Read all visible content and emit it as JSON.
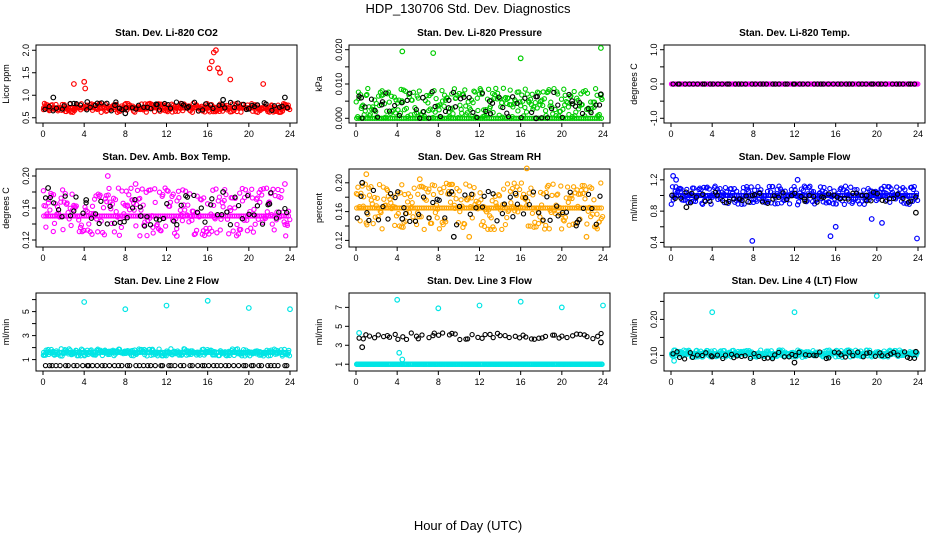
{
  "title": "HDP_130706  Std. Dev. Diagnostics",
  "xlabel": "Hour of Day (UTC)",
  "chart_data": [
    {
      "type": "scatter",
      "title": "Stan. Dev. Li-820 CO2",
      "ylabel": "Licor ppm",
      "xlim": [
        0,
        24
      ],
      "ylim": [
        0.45,
        2.05
      ],
      "xticks": [
        0,
        4,
        8,
        12,
        16,
        20,
        24
      ],
      "yticks": [
        0.5,
        1.0,
        1.5,
        2.0
      ],
      "ytick_labels": [
        "0.5",
        "1.0",
        "1.5",
        "2.0"
      ],
      "series": [
        {
          "color": "#ff0000",
          "band": [
            0.62,
            0.82
          ],
          "baseline": 0.72,
          "x": [
            3.0,
            4.0,
            4.1,
            16.2,
            16.4,
            16.6,
            16.8,
            17.0,
            17.2,
            18.2,
            21.4
          ],
          "y": [
            1.25,
            1.3,
            1.15,
            1.6,
            1.75,
            1.95,
            2.0,
            1.6,
            1.5,
            1.35,
            1.25
          ]
        },
        {
          "color": "#000000",
          "band": [
            0.65,
            0.85
          ],
          "baseline": 0.75,
          "x": [
            1.0,
            4.3,
            7.0,
            8.0,
            11.0,
            14.0,
            17.5,
            20.0,
            23.5
          ],
          "y": [
            0.95,
            0.85,
            0.78,
            0.6,
            0.8,
            0.72,
            0.9,
            0.7,
            0.95
          ]
        }
      ]
    },
    {
      "type": "scatter",
      "title": "Stan. Dev. Li-820 Pressure",
      "ylabel": "kPa",
      "xlim": [
        0,
        24
      ],
      "ylim": [
        -0.0005,
        0.0205
      ],
      "xticks": [
        0,
        4,
        8,
        12,
        16,
        20,
        24
      ],
      "yticks": [
        0.0,
        0.005,
        0.01,
        0.015,
        0.02
      ],
      "ytick_labels": [
        "0.000",
        "",
        "0.010",
        "",
        "0.020"
      ],
      "series": [
        {
          "color": "#00cc00",
          "band": [
            0.0,
            0.009
          ],
          "baseline": 0.0,
          "x": [
            4.5,
            7.5,
            16.0,
            23.8
          ],
          "y": [
            0.0195,
            0.019,
            0.0175,
            0.0205
          ]
        },
        {
          "color": "#000000",
          "band": [
            0.0,
            0.008
          ],
          "baseline": 0.0,
          "x": [
            0.5,
            2.5,
            6.5,
            9.0,
            13.0,
            17.5,
            21.0,
            23.8
          ],
          "y": [
            0.006,
            0.004,
            0.006,
            0.003,
            0.005,
            0.0,
            0.005,
            0.007
          ]
        }
      ]
    },
    {
      "type": "scatter",
      "title": "Stan. Dev. Li-820 Temp.",
      "ylabel": "degrees C",
      "xlim": [
        0,
        24
      ],
      "ylim": [
        -1.05,
        1.05
      ],
      "xticks": [
        0,
        4,
        8,
        12,
        16,
        20,
        24
      ],
      "yticks": [
        -1.0,
        -0.5,
        0.0,
        0.5,
        1.0
      ],
      "ytick_labels": [
        "-1.0",
        "",
        "0.0",
        "",
        "1.0"
      ],
      "series": [
        {
          "color": "#ff00ff",
          "band": [
            0.0,
            0.0
          ],
          "baseline": 0.0,
          "x": [],
          "y": []
        },
        {
          "color": "#000000",
          "band": [
            0.0,
            0.0
          ],
          "baseline": 0.0,
          "x": [],
          "y": []
        }
      ]
    },
    {
      "type": "scatter",
      "title": "Stan. Dev. Amb. Box Temp.",
      "ylabel": "degrees C",
      "xlim": [
        0,
        24
      ],
      "ylim": [
        0.115,
        0.205
      ],
      "xticks": [
        0,
        4,
        8,
        12,
        16,
        20,
        24
      ],
      "yticks": [
        0.12,
        0.14,
        0.16,
        0.18,
        0.2
      ],
      "ytick_labels": [
        "0.12",
        "",
        "0.16",
        "",
        "0.20"
      ],
      "series": [
        {
          "color": "#ff00ff",
          "band": [
            0.125,
            0.185
          ],
          "baseline": 0.15,
          "x": [
            6.3,
            9.0,
            13.0,
            23.5
          ],
          "y": [
            0.2,
            0.19,
            0.125,
            0.19
          ]
        },
        {
          "color": "#000000",
          "band": [
            0.135,
            0.18
          ],
          "baseline": 0.155,
          "x": [
            0.5,
            4.2,
            9.5,
            17.5,
            22.0
          ],
          "y": [
            0.185,
            0.17,
            0.15,
            0.18,
            0.165
          ]
        }
      ]
    },
    {
      "type": "scatter",
      "title": "Stan. Dev. Gas Stream RH",
      "ylabel": "percent",
      "xlim": [
        0,
        24
      ],
      "ylim": [
        0.115,
        0.215
      ],
      "xticks": [
        0,
        4,
        8,
        12,
        16,
        20,
        24
      ],
      "yticks": [
        0.12,
        0.14,
        0.16,
        0.18,
        0.2
      ],
      "ytick_labels": [
        "0.12",
        "",
        "0.16",
        "",
        "0.20"
      ],
      "series": [
        {
          "color": "#ffa500",
          "band": [
            0.135,
            0.2
          ],
          "baseline": 0.165,
          "x": [
            1.0,
            6.2,
            11.0,
            16.6,
            22.4
          ],
          "y": [
            0.212,
            0.205,
            0.125,
            0.22,
            0.125
          ]
        },
        {
          "color": "#000000",
          "band": [
            0.14,
            0.19
          ],
          "baseline": 0.165,
          "x": [
            0.6,
            4.5,
            9.5,
            15.5,
            21.5
          ],
          "y": [
            0.2,
            0.15,
            0.125,
            0.185,
            0.145
          ]
        }
      ]
    },
    {
      "type": "scatter",
      "title": "Stan. Dev. Sample Flow",
      "ylabel": "ml/min",
      "xlim": [
        0,
        24
      ],
      "ylim": [
        0.38,
        1.3
      ],
      "xticks": [
        0,
        4,
        8,
        12,
        16,
        20,
        24
      ],
      "yticks": [
        0.4,
        0.6,
        0.8,
        1.0,
        1.2
      ],
      "ytick_labels": [
        "0.4",
        "",
        "0.8",
        "",
        "1.2"
      ],
      "series": [
        {
          "color": "#0000ff",
          "band": [
            0.88,
            1.12
          ],
          "baseline": 1.0,
          "x": [
            0.2,
            0.5,
            7.9,
            15.5,
            16.0,
            19.5,
            20.5,
            23.9,
            12.3
          ],
          "y": [
            1.25,
            1.2,
            0.42,
            0.48,
            0.6,
            0.7,
            0.65,
            0.45,
            1.2
          ]
        },
        {
          "color": "#000000",
          "band": [
            0.9,
            1.05
          ],
          "baseline": 0.97,
          "x": [
            1.5,
            7.5,
            13.0,
            19.0,
            23.8
          ],
          "y": [
            0.85,
            0.92,
            0.95,
            1.0,
            0.78
          ]
        }
      ]
    },
    {
      "type": "scatter",
      "title": "Stan. Dev. Line 2 Flow",
      "ylabel": "ml/min",
      "xlim": [
        0,
        24
      ],
      "ylim": [
        0.3,
        6.3
      ],
      "xticks": [
        0,
        4,
        8,
        12,
        16,
        20,
        24
      ],
      "yticks": [
        1,
        2,
        3,
        4,
        5,
        6
      ],
      "ytick_labels": [
        "1",
        "",
        "3",
        "",
        "5",
        ""
      ],
      "series": [
        {
          "color": "#00e5e5",
          "band": [
            1.3,
            1.9
          ],
          "baseline": 1.6,
          "x": [
            4.0,
            8.0,
            12.0,
            16.0,
            20.0,
            24.0
          ],
          "y": [
            5.8,
            5.2,
            5.5,
            5.9,
            5.3,
            5.2
          ]
        },
        {
          "color": "#000000",
          "band": [
            0.5,
            0.5
          ],
          "baseline": 0.5,
          "x": [],
          "y": []
        }
      ]
    },
    {
      "type": "scatter",
      "title": "Stan. Dev. Line 3 Flow",
      "ylabel": "ml/min",
      "xlim": [
        0,
        24
      ],
      "ylim": [
        0.6,
        8.2
      ],
      "xticks": [
        0,
        4,
        8,
        12,
        16,
        20,
        24
      ],
      "yticks": [
        1,
        3,
        5,
        7
      ],
      "ytick_labels": [
        "1",
        "3",
        "5",
        "7"
      ],
      "series": [
        {
          "color": "#00e5e5",
          "band": [
            1.0,
            1.0
          ],
          "baseline": 1.0,
          "x": [
            0.3,
            4.0,
            4.2,
            4.5,
            8.0,
            12.0,
            16.0,
            20.0,
            24.0
          ],
          "y": [
            4.3,
            7.8,
            2.2,
            1.5,
            6.9,
            7.2,
            7.6,
            7.0,
            7.2
          ]
        },
        {
          "color": "#000000",
          "band": [
            3.6,
            4.3
          ],
          "baseline": 3.9,
          "x": [
            0.6,
            23.8
          ],
          "y": [
            2.8,
            3.3
          ]
        }
      ]
    },
    {
      "type": "scatter",
      "title": "Stan. Dev. Line 4 (LT) Flow",
      "ylabel": "ml/min",
      "xlim": [
        0,
        24
      ],
      "ylim": [
        0.065,
        0.265
      ],
      "xticks": [
        0,
        4,
        8,
        12,
        16,
        20,
        24
      ],
      "yticks": [
        0.1,
        0.15,
        0.2,
        0.25
      ],
      "ytick_labels": [
        "0.10",
        "",
        "0.20",
        ""
      ],
      "series": [
        {
          "color": "#00e5e5",
          "band": [
            0.095,
            0.115
          ],
          "baseline": 0.105,
          "x": [
            4.0,
            12.0,
            20.0,
            0.3
          ],
          "y": [
            0.22,
            0.22,
            0.265,
            0.085
          ]
        },
        {
          "color": "#000000",
          "band": [
            0.09,
            0.11
          ],
          "baseline": 0.1,
          "x": [
            12.0,
            23.8
          ],
          "y": [
            0.08,
            0.11
          ]
        }
      ]
    }
  ]
}
